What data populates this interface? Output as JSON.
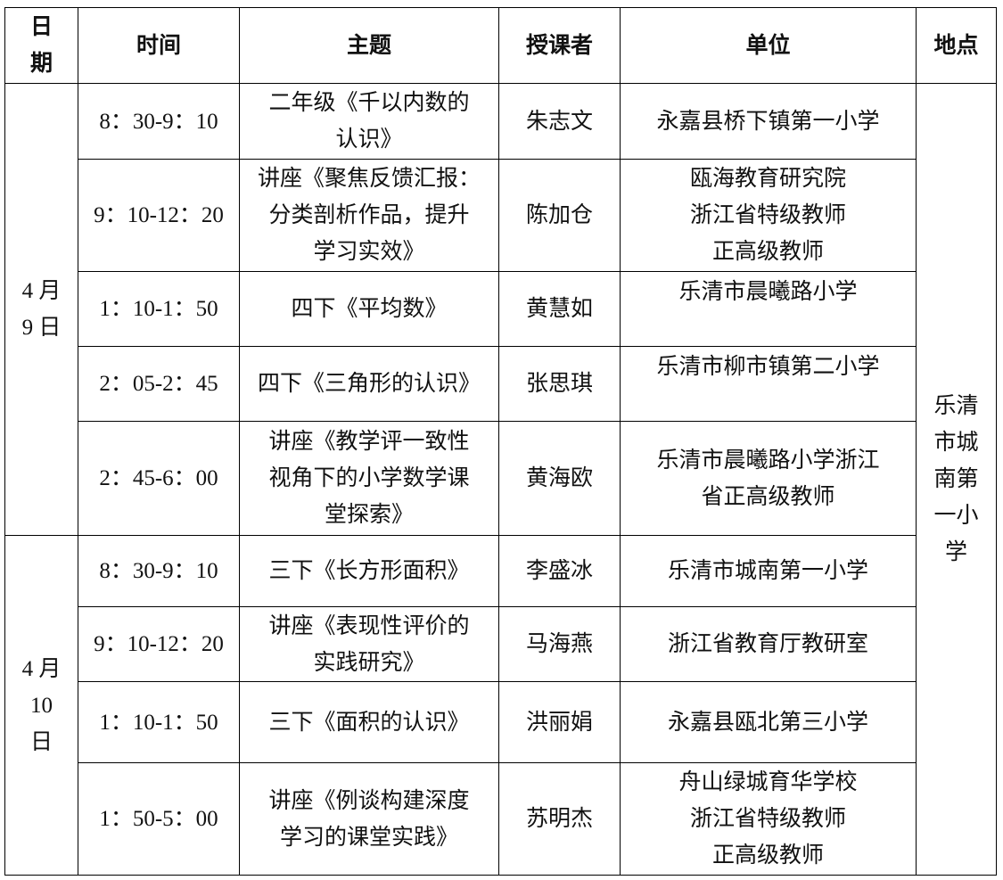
{
  "headers": {
    "date": "日\n期",
    "time": "时间",
    "topic": "主题",
    "speaker": "授课者",
    "unit": "单位",
    "place": "地点"
  },
  "place": "乐清\n市城\n南第\n一小\n学",
  "days": [
    {
      "date": "4 月\n9 日",
      "sessions": [
        {
          "time": "8：30-9：10",
          "topic": "二年级《千以内数的\n认识》",
          "speaker": "朱志文",
          "unit": "永嘉县桥下镇第一小学"
        },
        {
          "time": "9：10-12：20",
          "topic": "讲座《聚焦反馈汇报：\n分类剖析作品，提升\n学习实效》",
          "speaker": "陈加仓",
          "unit": "瓯海教育研究院\n浙江省特级教师\n正高级教师"
        },
        {
          "time": "1：10-1：50",
          "topic": "四下《平均数》",
          "speaker": "黄慧如",
          "unit": "乐清市晨曦路小学"
        },
        {
          "time": "2：05-2：45",
          "topic": "四下《三角形的认识》",
          "speaker": "张思琪",
          "unit": "乐清市柳市镇第二小学"
        },
        {
          "time": "2：45-6：00",
          "topic": "讲座《教学评一致性\n视角下的小学数学课\n堂探索》",
          "speaker": "黄海欧",
          "unit": "乐清市晨曦路小学浙江\n省正高级教师"
        }
      ]
    },
    {
      "date": "4 月\n10\n日",
      "sessions": [
        {
          "time": "8：30-9：10",
          "topic": "三下《长方形面积》",
          "speaker": "李盛冰",
          "unit": "乐清市城南第一小学"
        },
        {
          "time": "9：10-12：20",
          "topic": "讲座《表现性评价的\n实践研究》",
          "speaker": "马海燕",
          "unit": "浙江省教育厅教研室"
        },
        {
          "time": "1：10-1：50",
          "topic": "三下《面积的认识》",
          "speaker": "洪丽娟",
          "unit": "永嘉县瓯北第三小学"
        },
        {
          "time": "1：50-5：00",
          "topic": "讲座《例谈构建深度\n学习的课堂实践》",
          "speaker": "苏明杰",
          "unit": "舟山绿城育华学校\n浙江省特级教师\n正高级教师"
        }
      ]
    }
  ]
}
